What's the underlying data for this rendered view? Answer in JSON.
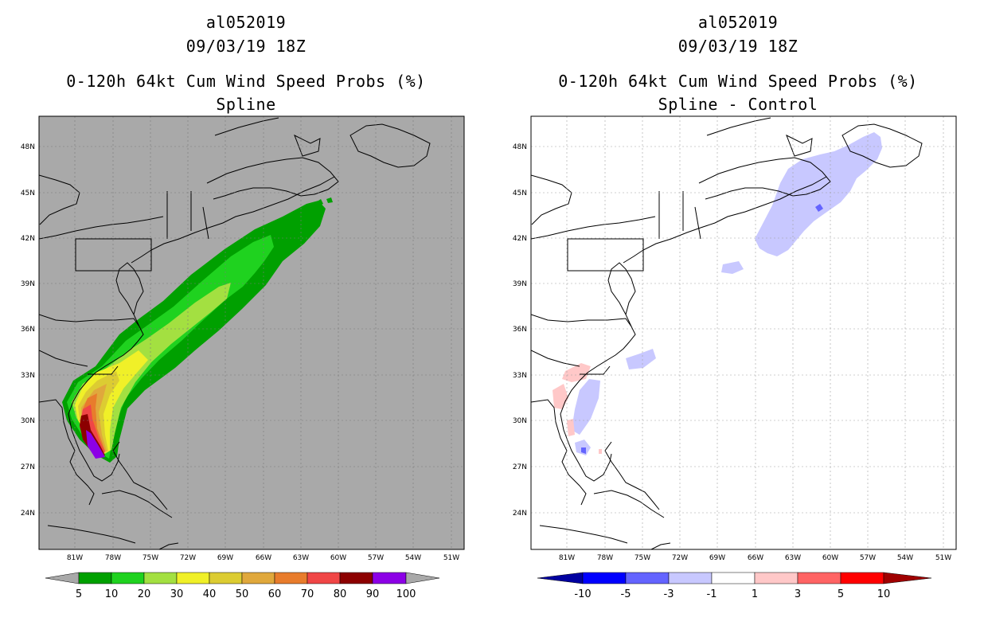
{
  "colors": {
    "background": "#ffffff",
    "land_ocean_left": "#a9a9a9",
    "land_ocean_right": "#ffffff",
    "grid": "#a0a0a0",
    "coast": "#000000"
  },
  "panels": [
    {
      "id": "left",
      "storm_id": "al052019",
      "datetime": "09/03/19 18Z",
      "product": "0-120h 64kt Cum Wind Speed Probs (%)",
      "subtitle": "Spline",
      "lat_labels": [
        "48N",
        "45N",
        "42N",
        "39N",
        "36N",
        "33N",
        "30N",
        "27N",
        "24N"
      ],
      "lon_labels": [
        "81W",
        "78W",
        "75W",
        "72W",
        "69W",
        "66W",
        "63W",
        "60W",
        "57W",
        "54W",
        "51W"
      ],
      "colorbar": {
        "labels": [
          "5",
          "10",
          "20",
          "30",
          "40",
          "50",
          "60",
          "70",
          "80",
          "90",
          "100"
        ],
        "colors": [
          "#00a000",
          "#1fd21f",
          "#a3e041",
          "#f0f028",
          "#dccc32",
          "#e0a83c",
          "#e87c2c",
          "#f04646",
          "#8c0000",
          "#8c00e6"
        ]
      },
      "contours": {
        "lvl5": "5% probability region",
        "lvl10": "10% probability region",
        "lvl20": "20% probability region",
        "lvl30": "30% probability region",
        "lvl40": "40% probability region",
        "lvl50": "50% probability region",
        "lvl60": "60% probability region",
        "lvl70": "70% probability region",
        "lvl80": "80% probability region",
        "lvl90": "90% probability region"
      }
    },
    {
      "id": "right",
      "storm_id": "al052019",
      "datetime": "09/03/19 18Z",
      "product": "0-120h 64kt Cum Wind Speed Probs (%)",
      "subtitle": "Spline - Control",
      "lat_labels": [
        "48N",
        "45N",
        "42N",
        "39N",
        "36N",
        "33N",
        "30N",
        "27N",
        "24N"
      ],
      "lon_labels": [
        "81W",
        "78W",
        "75W",
        "72W",
        "69W",
        "66W",
        "63W",
        "60W",
        "57W",
        "54W",
        "51W"
      ],
      "colorbar": {
        "labels": [
          "-10",
          "-5",
          "-3",
          "-1",
          "1",
          "3",
          "5",
          "10"
        ],
        "colors": [
          "#0000a0",
          "#0000ff",
          "#6464ff",
          "#c8c8ff",
          "#ffffff",
          "#ffc8c8",
          "#ff6464",
          "#ff0000",
          "#a00000"
        ]
      }
    }
  ]
}
